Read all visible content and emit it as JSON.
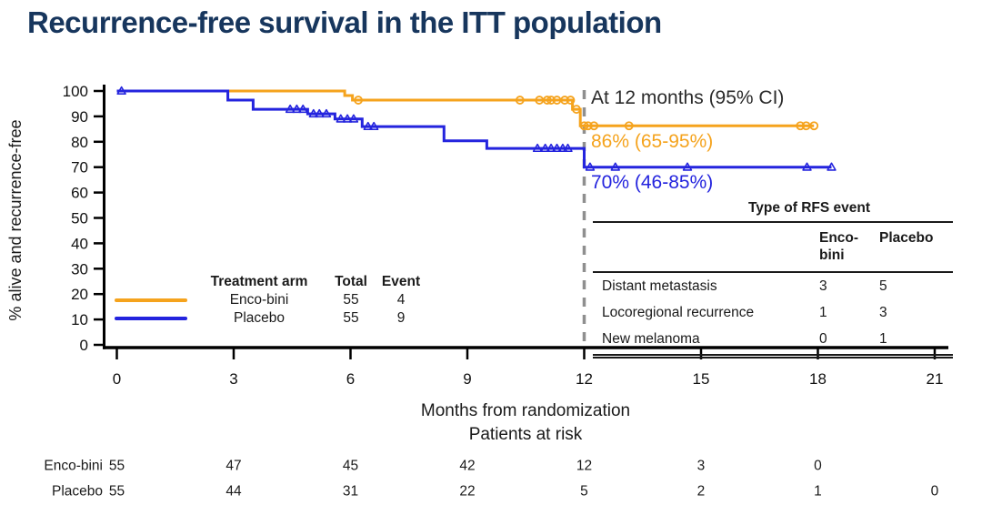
{
  "title": "Recurrence-free survival in the ITT population",
  "colors": {
    "enco": "#F5A31D",
    "placebo": "#2424DE",
    "reference_dash": "#8F8F8F",
    "title_navy": "#17365D",
    "axis": "#000000"
  },
  "annotation": {
    "heading": "At 12 months (95% CI)",
    "enco": "86% (65-95%)",
    "placebo": "70% (46-85%)"
  },
  "legend": {
    "headers": [
      "Treatment arm",
      "Total",
      "Event"
    ],
    "rows": [
      {
        "arm": "Enco-bini",
        "total": "55",
        "event": "4"
      },
      {
        "arm": "Placebo",
        "total": "55",
        "event": "9"
      }
    ]
  },
  "rfs_table": {
    "title": "Type of RFS event",
    "col1": "Enco-bini",
    "col2": "Placebo",
    "rows": [
      {
        "label": "Distant metastasis",
        "enco": "3",
        "placebo": "5"
      },
      {
        "label": "Locoregional recurrence",
        "enco": "1",
        "placebo": "3"
      },
      {
        "label": "New melanoma",
        "enco": "0",
        "placebo": "1"
      }
    ]
  },
  "risk_table": {
    "title": "Patients at risk",
    "rows": [
      {
        "label": "Enco-bini",
        "counts": [
          "55",
          "47",
          "45",
          "42",
          "12",
          "3",
          "0",
          ""
        ]
      },
      {
        "label": "Placebo",
        "counts": [
          "55",
          "44",
          "31",
          "22",
          "5",
          "2",
          "1",
          "0"
        ]
      }
    ]
  },
  "chart_data": {
    "type": "line",
    "subtype": "kaplan-meier-step",
    "xlabel": "Months from randomization",
    "ylabel": "% alive and recurrence-free",
    "xlim": [
      0,
      21
    ],
    "ylim": [
      0,
      100
    ],
    "x_ticks": [
      0,
      3,
      6,
      9,
      12,
      15,
      18,
      21
    ],
    "y_ticks": [
      0,
      10,
      20,
      30,
      40,
      50,
      60,
      70,
      80,
      90,
      100
    ],
    "grid": false,
    "reference_line_x": 12,
    "series": [
      {
        "name": "Enco-bini",
        "color": "#F5A31D",
        "marker": "circle",
        "estimate_at_12mo": "86% (65-95%)",
        "steps": [
          [
            0,
            100
          ],
          [
            5.85,
            100
          ],
          [
            5.85,
            98.2
          ],
          [
            6.05,
            98.2
          ],
          [
            6.05,
            96.4
          ],
          [
            11.7,
            96.4
          ],
          [
            11.7,
            92.8
          ],
          [
            11.9,
            92.8
          ],
          [
            11.9,
            86.3
          ],
          [
            17.9,
            86.3
          ]
        ],
        "censors": [
          [
            6.2,
            96.4
          ],
          [
            10.35,
            96.4
          ],
          [
            10.85,
            96.4
          ],
          [
            11.05,
            96.4
          ],
          [
            11.15,
            96.4
          ],
          [
            11.3,
            96.4
          ],
          [
            11.5,
            96.4
          ],
          [
            11.65,
            96.4
          ],
          [
            11.8,
            92.8
          ],
          [
            12.0,
            86.3
          ],
          [
            12.1,
            86.3
          ],
          [
            12.25,
            86.3
          ],
          [
            13.15,
            86.3
          ],
          [
            17.55,
            86.3
          ],
          [
            17.7,
            86.3
          ],
          [
            17.9,
            86.3
          ]
        ]
      },
      {
        "name": "Placebo",
        "color": "#2424DE",
        "marker": "triangle",
        "estimate_at_12mo": "70% (46-85%)",
        "steps": [
          [
            0,
            100
          ],
          [
            2.85,
            100
          ],
          [
            2.85,
            96.4
          ],
          [
            3.5,
            96.4
          ],
          [
            3.5,
            92.8
          ],
          [
            4.9,
            92.8
          ],
          [
            4.9,
            91
          ],
          [
            5.6,
            91
          ],
          [
            5.6,
            89
          ],
          [
            6.3,
            89
          ],
          [
            6.3,
            86
          ],
          [
            8.4,
            86
          ],
          [
            8.4,
            80.4
          ],
          [
            9.5,
            80.4
          ],
          [
            9.5,
            77.4
          ],
          [
            12,
            77.4
          ],
          [
            12,
            70
          ],
          [
            18.35,
            70
          ]
        ],
        "censors": [
          [
            0.12,
            100
          ],
          [
            4.45,
            92.8
          ],
          [
            4.62,
            92.8
          ],
          [
            4.78,
            92.8
          ],
          [
            5.05,
            91
          ],
          [
            5.2,
            91
          ],
          [
            5.38,
            91
          ],
          [
            5.75,
            89
          ],
          [
            5.92,
            89
          ],
          [
            6.08,
            89
          ],
          [
            6.45,
            86
          ],
          [
            6.6,
            86
          ],
          [
            10.8,
            77.4
          ],
          [
            11.0,
            77.4
          ],
          [
            11.15,
            77.4
          ],
          [
            11.3,
            77.4
          ],
          [
            11.45,
            77.4
          ],
          [
            11.58,
            77.4
          ],
          [
            12.15,
            70
          ],
          [
            12.8,
            70
          ],
          [
            14.65,
            70
          ],
          [
            17.72,
            70
          ],
          [
            18.35,
            70
          ]
        ]
      }
    ]
  }
}
